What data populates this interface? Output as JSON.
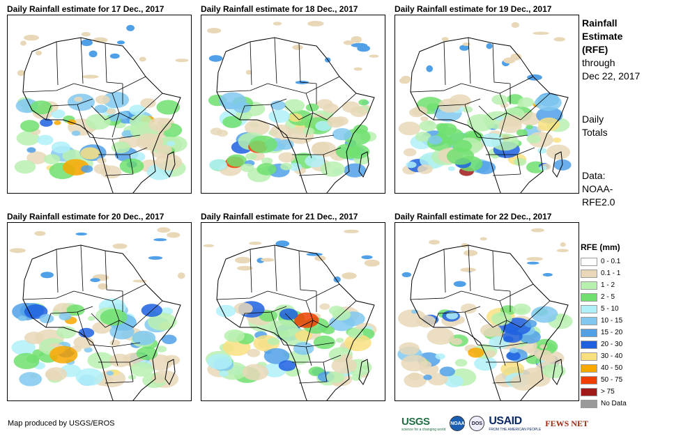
{
  "panels": [
    {
      "title": "Daily Rainfall estimate for 17 Dec., 2017",
      "date": "17 Dec., 2017"
    },
    {
      "title": "Daily Rainfall estimate for 18 Dec., 2017",
      "date": "18 Dec., 2017"
    },
    {
      "title": "Daily Rainfall estimate for 19 Dec., 2017",
      "date": "19 Dec., 2017"
    },
    {
      "title": "Daily Rainfall estimate for 20 Dec., 2017",
      "date": "20 Dec., 2017"
    },
    {
      "title": "Daily Rainfall estimate for 21 Dec., 2017",
      "date": "21 Dec., 2017"
    },
    {
      "title": "Daily Rainfall estimate for 22 Dec., 2017",
      "date": "22 Dec., 2017"
    }
  ],
  "sidebar": {
    "heading_lines": [
      "Rainfall",
      "Estimate",
      "(RFE)"
    ],
    "through_label": "through",
    "through_date": "Dec 22, 2017",
    "totals_lines": [
      "Daily",
      "Totals"
    ],
    "data_lines": [
      "Data:",
      "NOAA-",
      "RFE2.0"
    ]
  },
  "legend": {
    "title": "RFE (mm)",
    "items": [
      {
        "label": "0 - 0.1",
        "color": "#ffffff"
      },
      {
        "label": "0.1 - 1",
        "color": "#e8d8b8"
      },
      {
        "label": "1 - 2",
        "color": "#b8f0b0"
      },
      {
        "label": "2 - 5",
        "color": "#70e070"
      },
      {
        "label": "5 - 10",
        "color": "#b0f0f8"
      },
      {
        "label": "10 - 15",
        "color": "#80c8f0"
      },
      {
        "label": "15 - 20",
        "color": "#50a0e8"
      },
      {
        "label": "20 - 30",
        "color": "#1e60e0"
      },
      {
        "label": "30 - 40",
        "color": "#f8e080"
      },
      {
        "label": "40 - 50",
        "color": "#f8a800"
      },
      {
        "label": "50 - 75",
        "color": "#f04000"
      },
      {
        "label": "> 75",
        "color": "#a01818"
      },
      {
        "label": "No Data",
        "color": "#9a9a9a"
      }
    ]
  },
  "footer": {
    "credit": "Map produced by USGS/EROS",
    "logos": {
      "usgs": "USGS",
      "usgs_tagline": "science for a changing world",
      "noaa": "NOAA",
      "dos": "DOS",
      "usaid": "USAID",
      "usaid_tagline": "FROM THE AMERICAN PEOPLE",
      "fewsnet": "FEWS NET"
    }
  }
}
